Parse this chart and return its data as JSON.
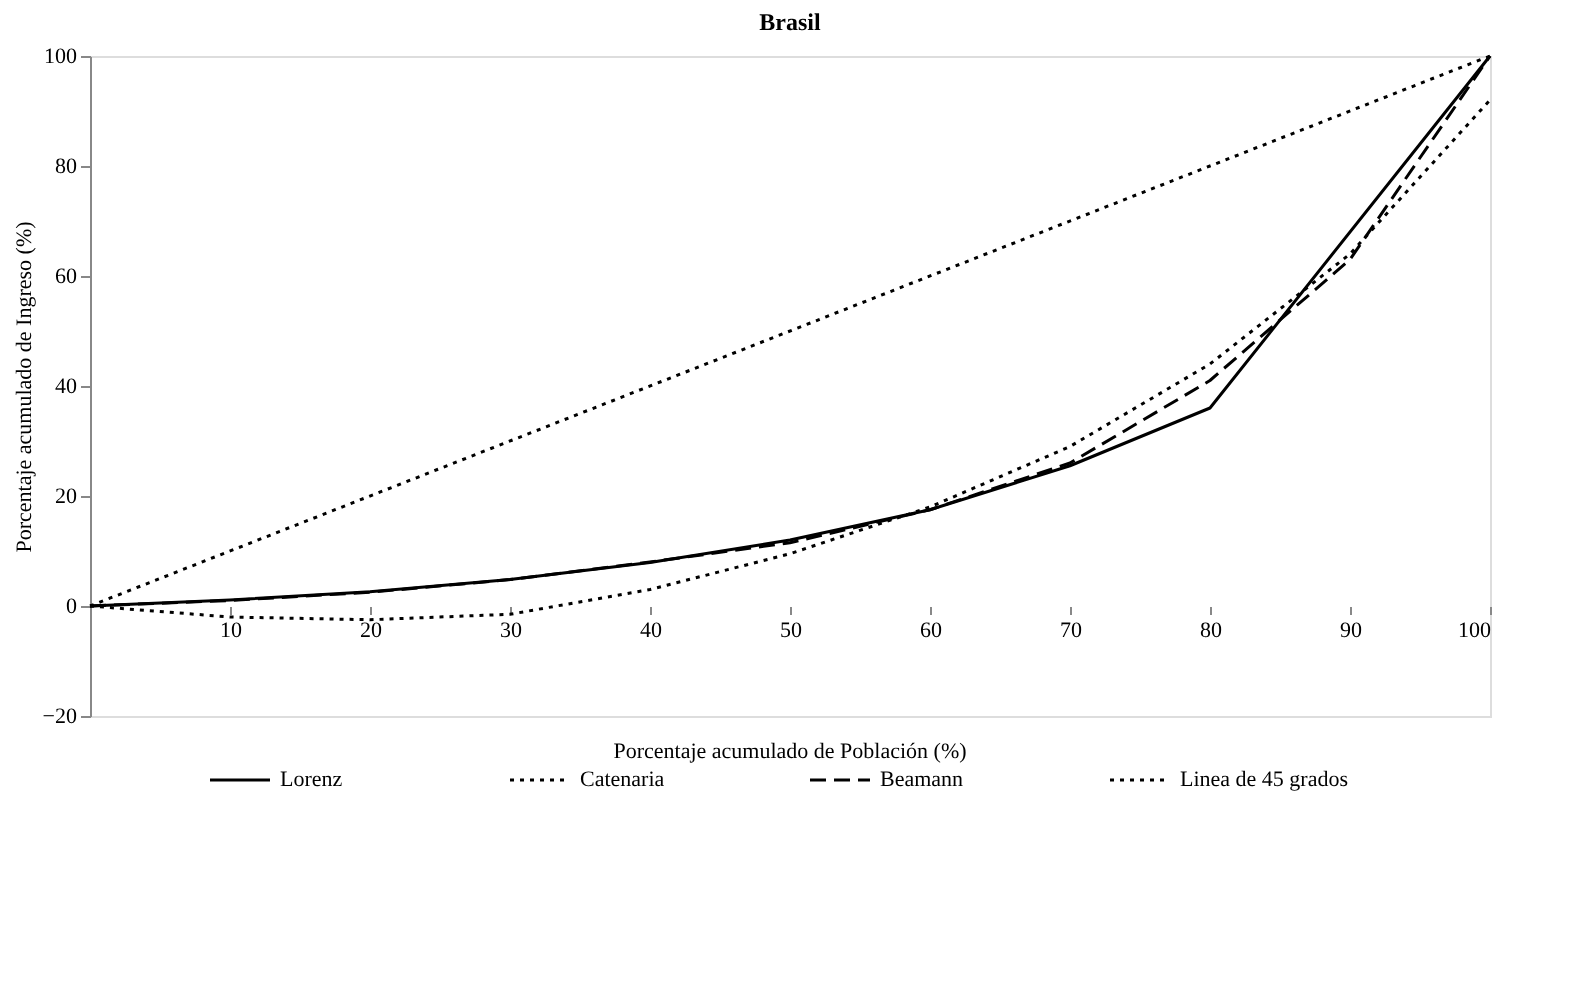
{
  "chart_data": {
    "type": "line",
    "title": "Brasil",
    "xlabel": "Porcentaje acumulado de Población (%)",
    "ylabel": "Porcentaje acumulado de Ingreso (%)",
    "xlim": [
      0,
      100
    ],
    "ylim": [
      -20,
      100
    ],
    "xticks": [
      10,
      20,
      30,
      40,
      50,
      60,
      70,
      80,
      90,
      100
    ],
    "yticks": [
      -20,
      0,
      20,
      40,
      60,
      80,
      100
    ],
    "grid": false,
    "legend": "bottom",
    "marker": "none",
    "series": [
      {
        "name": "Lorenz",
        "color": "#000000",
        "line_style": "solid",
        "x": [
          0,
          10,
          20,
          30,
          40,
          50,
          60,
          70,
          80,
          100
        ],
        "values": [
          0,
          1.1,
          2.6,
          4.8,
          7.9,
          12,
          17.5,
          25.5,
          36,
          100
        ]
      },
      {
        "name": "Catenaria",
        "color": "#000000",
        "line_style": "dotted",
        "x": [
          0,
          10,
          20,
          30,
          40,
          50,
          60,
          70,
          80,
          90,
          100
        ],
        "values": [
          0,
          -2,
          -2.5,
          -1.5,
          3,
          9.5,
          18,
          29,
          44,
          64,
          92
        ]
      },
      {
        "name": "Beamann",
        "color": "#000000",
        "line_style": "dashed",
        "x": [
          0,
          10,
          20,
          30,
          40,
          50,
          60,
          70,
          80,
          90,
          100
        ],
        "values": [
          0,
          1,
          2.5,
          4.8,
          8,
          11.5,
          17.5,
          26,
          41,
          63,
          100
        ]
      },
      {
        "name": "Linea de 45 grados",
        "color": "#000000",
        "line_style": "dotted",
        "x": [
          0,
          100
        ],
        "values": [
          0,
          100
        ]
      }
    ]
  }
}
